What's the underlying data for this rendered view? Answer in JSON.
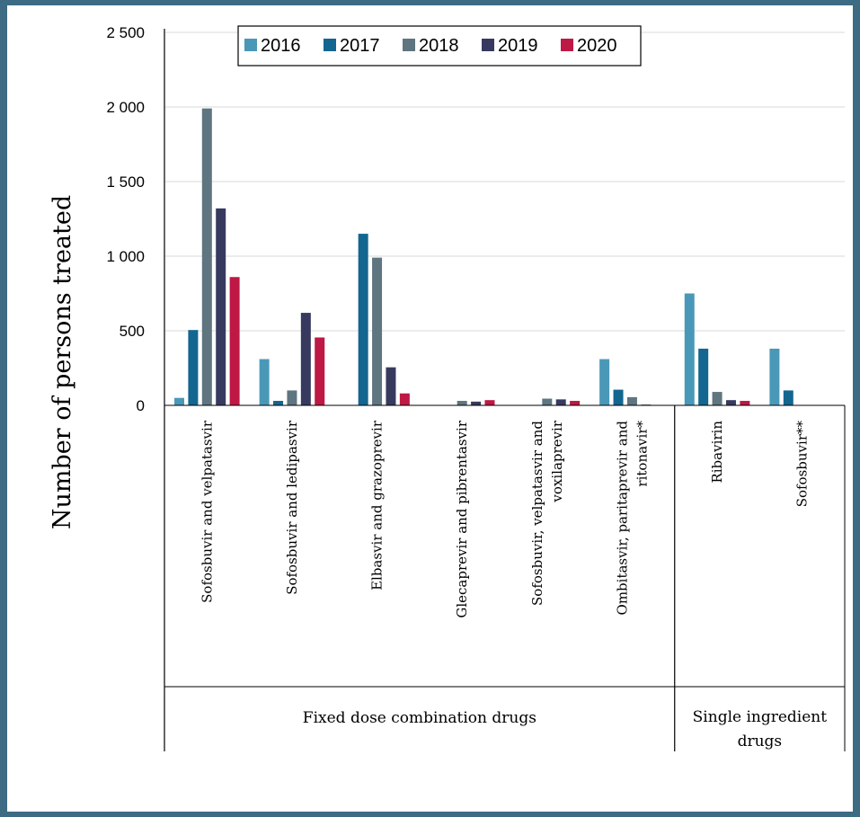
{
  "chart_data": {
    "type": "bar",
    "ylabel": "Number of persons treated",
    "ylim": [
      0,
      2500
    ],
    "yticks": [
      0,
      500,
      1000,
      1500,
      2000,
      2500
    ],
    "ytick_labels": [
      "0",
      "500",
      "1 000",
      "1 500",
      "2 000",
      "2 500"
    ],
    "grid": true,
    "legend_position": "top",
    "categories": [
      "Sofosbuvir and velpatasvir",
      "Sofosbuvir and ledipasvir",
      "Elbasvir and grazoprevir",
      "Glecaprevir and pibrentasvir",
      "Sofosbuvir, velpatasvir and voxilaprevir",
      "Ombitasvir, paritaprevir and ritonavir*",
      "Ribavirin",
      "Sofosbuvir**"
    ],
    "category_label_lines": [
      [
        "Sofosbuvir and velpatasvir"
      ],
      [
        "Sofosbuvir and ledipasvir"
      ],
      [
        "Elbasvir and grazoprevir"
      ],
      [
        "Glecaprevir and pibrentasvir"
      ],
      [
        "Sofosbuvir, velpatasvir and",
        "voxilaprevir"
      ],
      [
        "Ombitasvir, paritaprevir and",
        "ritonavir*"
      ],
      [
        "Ribavirin"
      ],
      [
        "Sofosbuvir**"
      ]
    ],
    "groups": [
      {
        "label_lines": [
          "Fixed dose combination drugs"
        ],
        "category_count": 6
      },
      {
        "label_lines": [
          "Single ingredient",
          "drugs"
        ],
        "category_count": 2
      }
    ],
    "series": [
      {
        "name": "2016",
        "color": "#4a98b8",
        "values": [
          50,
          310,
          0,
          0,
          0,
          310,
          750,
          380
        ]
      },
      {
        "name": "2017",
        "color": "#13668f",
        "values": [
          505,
          30,
          1150,
          0,
          0,
          105,
          380,
          100
        ]
      },
      {
        "name": "2018",
        "color": "#5f757f",
        "values": [
          1990,
          100,
          990,
          30,
          45,
          55,
          90,
          0
        ]
      },
      {
        "name": "2019",
        "color": "#373a5e",
        "values": [
          1320,
          620,
          255,
          25,
          40,
          5,
          35,
          0
        ]
      },
      {
        "name": "2020",
        "color": "#be1845",
        "values": [
          860,
          455,
          80,
          35,
          30,
          0,
          30,
          0
        ]
      }
    ]
  }
}
